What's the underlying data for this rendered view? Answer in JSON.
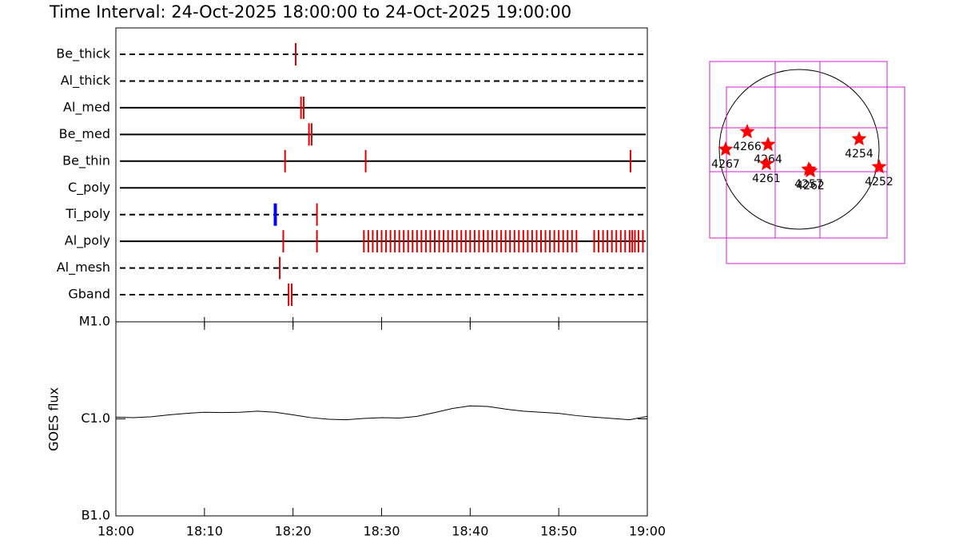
{
  "title": "Time Interval: 24-Oct-2025 18:00:00 to 24-Oct-2025 19:00:00",
  "chart_data": [
    {
      "type": "timeline",
      "xlim": [
        0,
        60
      ],
      "rows": [
        {
          "name": "Be_thick",
          "line": "dashed",
          "color": "#e00000",
          "times": [
            20.3
          ]
        },
        {
          "name": "Al_thick",
          "line": "dashed",
          "color": "#e00000",
          "times": []
        },
        {
          "name": "Al_med",
          "line": "solid",
          "color": "#e00000",
          "times": [
            20.9,
            21.2
          ]
        },
        {
          "name": "Be_med",
          "line": "solid",
          "color": "#e00000",
          "times": [
            21.8,
            22.1
          ]
        },
        {
          "name": "Be_thin",
          "line": "solid",
          "color": "#e00000",
          "times": [
            19.1,
            28.2,
            58.1
          ]
        },
        {
          "name": "C_poly",
          "line": "solid",
          "color": "#e00000",
          "times": []
        },
        {
          "name": "Ti_poly",
          "line": "dashed",
          "color": "#e00000",
          "times": [
            18.0,
            22.7
          ],
          "colors": [
            "#0000ff",
            "#e00000"
          ]
        },
        {
          "name": "Al_poly",
          "line": "solid",
          "color": "#e00000",
          "times": [
            18.9,
            22.7,
            28.0,
            28.5,
            29.0,
            29.5,
            30.0,
            30.5,
            31.0,
            31.5,
            32.0,
            32.5,
            33.0,
            33.5,
            34.0,
            34.5,
            35.0,
            35.5,
            36.0,
            36.5,
            37.0,
            37.5,
            38.0,
            38.5,
            39.0,
            39.5,
            40.0,
            40.5,
            41.0,
            41.5,
            42.0,
            42.5,
            43.0,
            43.5,
            44.0,
            44.5,
            45.0,
            45.5,
            46.0,
            46.5,
            47.0,
            47.5,
            48.0,
            48.5,
            49.0,
            49.5,
            50.0,
            50.5,
            51.0,
            51.5,
            52.0,
            54.0,
            54.5,
            55.0,
            55.5,
            56.0,
            56.5,
            57.0,
            57.5,
            58.0,
            58.3,
            58.6,
            59.0,
            59.5
          ]
        },
        {
          "name": "Al_mesh",
          "line": "dashed",
          "color": "#e00000",
          "times": [
            18.5
          ]
        },
        {
          "name": "Gband",
          "line": "dashed",
          "color": "#e00000",
          "times": [
            19.5,
            19.85
          ]
        }
      ]
    },
    {
      "type": "line",
      "y_label": "GOES flux",
      "log_y": true,
      "color": "#000000",
      "x": [
        0,
        2,
        4,
        6,
        8,
        10,
        12,
        14,
        16,
        18,
        20,
        22,
        24,
        26,
        28,
        30,
        32,
        34,
        36,
        38,
        40,
        42,
        44,
        46,
        48,
        50,
        52,
        54,
        56,
        58,
        60
      ],
      "values": [
        1.04e-06,
        1.03e-06,
        1.05e-06,
        1.1e-06,
        1.14e-06,
        1.17e-06,
        1.16e-06,
        1.17e-06,
        1.2e-06,
        1.17e-06,
        1.1e-06,
        1.03e-06,
        9.9e-07,
        9.8e-07,
        1.01e-06,
        1.03e-06,
        1.02e-06,
        1.06e-06,
        1.16e-06,
        1.28e-06,
        1.36e-06,
        1.34e-06,
        1.26e-06,
        1.2e-06,
        1.17e-06,
        1.14e-06,
        1.08e-06,
        1.04e-06,
        1.01e-06,
        9.8e-07,
        1.06e-06
      ],
      "xlim": [
        0,
        60
      ],
      "xticks": [
        {
          "value": 0,
          "label": "18:00"
        },
        {
          "value": 10,
          "label": "18:10"
        },
        {
          "value": 20,
          "label": "18:20"
        },
        {
          "value": 30,
          "label": "18:30"
        },
        {
          "value": 40,
          "label": "18:40"
        },
        {
          "value": 50,
          "label": "18:50"
        },
        {
          "value": 60,
          "label": "19:00"
        }
      ],
      "ylim": [
        1e-07,
        1e-05
      ],
      "yticks": [
        {
          "value": 1e-05,
          "label": "M1.0"
        },
        {
          "value": 1e-06,
          "label": "C1.0"
        },
        {
          "value": 1e-07,
          "label": "B1.0"
        }
      ]
    },
    {
      "type": "scatter",
      "color": "#ff0000",
      "xlim": [
        -1,
        1
      ],
      "ylim": [
        -1,
        1
      ],
      "labels": [
        "4267",
        "4266",
        "4264",
        "4261",
        "4257",
        "4262",
        "4254",
        "4252"
      ],
      "x": [
        -0.92,
        -0.65,
        -0.39,
        -0.41,
        0.12,
        0.14,
        0.75,
        1.0
      ],
      "values": [
        0.0,
        0.22,
        0.06,
        -0.18,
        -0.25,
        -0.27,
        0.13,
        -0.22
      ]
    }
  ]
}
